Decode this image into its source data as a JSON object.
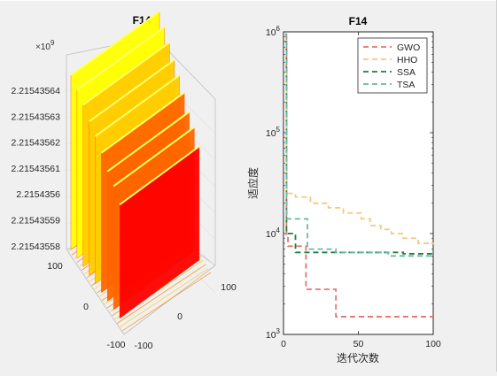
{
  "figure": {
    "background": "#f0f0f0"
  },
  "chart_data": [
    {
      "type": "surface",
      "title": "F14",
      "exponent_label": "×10",
      "exponent_power": "9",
      "z_ticks": [
        "2.21543564",
        "2.21543563",
        "2.21543562",
        "2.21543561",
        "2.2154356",
        "2.21543559",
        "2.21543558"
      ],
      "x_ticks": [
        "100",
        "0",
        "-100"
      ],
      "y_ticks": [
        "100",
        "0",
        "-100"
      ],
      "colormap": "autumn",
      "colors": [
        "#ff0000",
        "#ff6600",
        "#ffcc00",
        "#ffff00"
      ],
      "surface_ridges": [
        {
          "level": 0.88,
          "width": 0.18
        },
        {
          "level": 0.8,
          "width": 0.12
        },
        {
          "level": 0.72,
          "width": 0.1
        },
        {
          "level": 0.63,
          "width": 0.12
        },
        {
          "level": 0.55,
          "width": 0.1
        },
        {
          "level": 0.46,
          "width": 0.1
        },
        {
          "level": 0.36,
          "width": 0.1
        },
        {
          "level": 0.28,
          "width": 0.1
        },
        {
          "level": 0.18,
          "width": 0.1
        }
      ]
    },
    {
      "type": "line",
      "title": "F14",
      "xlabel": "迭代次数",
      "ylabel": "适应度",
      "yscale": "log",
      "xlim": [
        0,
        100
      ],
      "ylim": [
        1000,
        1000000
      ],
      "x_ticks": [
        "0",
        "50",
        "100"
      ],
      "y_ticks": [
        {
          "base": "10",
          "power": "3",
          "value": 1000
        },
        {
          "base": "10",
          "power": "4",
          "value": 10000
        },
        {
          "base": "10",
          "power": "5",
          "value": 100000
        },
        {
          "base": "10",
          "power": "6",
          "value": 1000000
        }
      ],
      "legend_position": "top-right",
      "series": [
        {
          "name": "GWO",
          "color": "#e8736d",
          "dash": "dashed",
          "points": [
            [
              1,
              900000
            ],
            [
              2,
              9500
            ],
            [
              3,
              7500
            ],
            [
              14,
              7500
            ],
            [
              15,
              2800
            ],
            [
              34,
              2800
            ],
            [
              35,
              1500
            ],
            [
              100,
              1500
            ]
          ]
        },
        {
          "name": "HHO",
          "color": "#f7c87c",
          "dash": "dashed",
          "points": [
            [
              1,
              400000
            ],
            [
              2,
              25000
            ],
            [
              8,
              23000
            ],
            [
              15,
              23000
            ],
            [
              18,
              20000
            ],
            [
              25,
              20000
            ],
            [
              30,
              18000
            ],
            [
              40,
              16000
            ],
            [
              45,
              16000
            ],
            [
              52,
              14000
            ],
            [
              58,
              12000
            ],
            [
              65,
              11000
            ],
            [
              72,
              10000
            ],
            [
              80,
              9000
            ],
            [
              90,
              8000
            ],
            [
              100,
              7800
            ]
          ]
        },
        {
          "name": "SSA",
          "color": "#1a7e3e",
          "dash": "dashed",
          "points": [
            [
              1,
              800000
            ],
            [
              2,
              10000
            ],
            [
              8,
              6500
            ],
            [
              40,
              6500
            ],
            [
              80,
              6300
            ],
            [
              100,
              6300
            ]
          ]
        },
        {
          "name": "TSA",
          "color": "#6ab8a6",
          "dash": "dashed",
          "points": [
            [
              1,
              950000
            ],
            [
              2,
              14000
            ],
            [
              3,
              14000
            ],
            [
              15,
              14000
            ],
            [
              16,
              7000
            ],
            [
              35,
              6500
            ],
            [
              70,
              6000
            ],
            [
              100,
              5800
            ]
          ]
        }
      ]
    }
  ]
}
